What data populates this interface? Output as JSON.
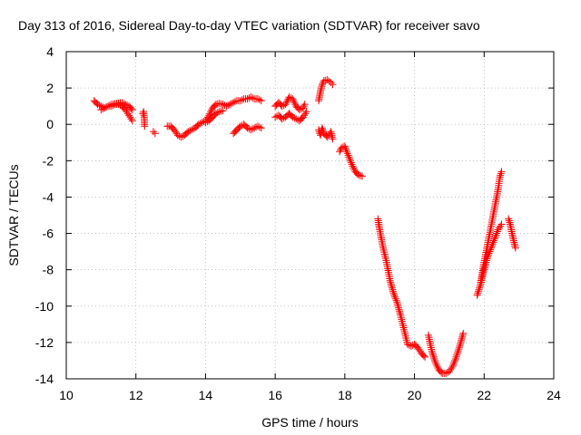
{
  "chart_data": {
    "type": "scatter",
    "title": "Day 313 of 2016, Sidereal Day-to-day VTEC variation (SDTVAR) for receiver savo",
    "xlabel": "GPS time / hours",
    "ylabel": "SDTVAR / TECUs",
    "xlim": [
      10,
      24
    ],
    "ylim": [
      -14,
      4
    ],
    "xticks": [
      10,
      12,
      14,
      16,
      18,
      20,
      22,
      24
    ],
    "yticks": [
      -14,
      -12,
      -10,
      -8,
      -6,
      -4,
      -2,
      0,
      2,
      4
    ],
    "marker": "+",
    "series_color": "#ff0000",
    "series": [
      {
        "name": "SDTVAR",
        "segments": [
          [
            [
              10.8,
              1.3
            ],
            [
              10.9,
              1.1
            ],
            [
              11.0,
              1.0
            ],
            [
              11.1,
              0.9
            ],
            [
              11.2,
              1.0
            ],
            [
              11.3,
              1.0
            ],
            [
              11.4,
              1.1
            ],
            [
              11.5,
              1.1
            ],
            [
              11.6,
              1.0
            ],
            [
              11.7,
              0.8
            ],
            [
              11.8,
              0.5
            ],
            [
              11.9,
              0.2
            ]
          ],
          [
            [
              11.0,
              0.8
            ],
            [
              11.15,
              0.95
            ],
            [
              11.3,
              1.1
            ],
            [
              11.45,
              1.15
            ],
            [
              11.6,
              1.2
            ],
            [
              11.7,
              1.1
            ],
            [
              11.8,
              1.0
            ],
            [
              11.9,
              0.8
            ]
          ],
          [
            [
              12.2,
              0.6
            ],
            [
              12.22,
              0.7
            ],
            [
              12.24,
              0.4
            ],
            [
              12.25,
              -0.1
            ]
          ],
          [
            [
              12.5,
              -0.4
            ],
            [
              12.55,
              -0.5
            ]
          ],
          [
            [
              12.9,
              -0.1
            ],
            [
              13.0,
              -0.1
            ],
            [
              13.1,
              -0.3
            ],
            [
              13.2,
              -0.6
            ],
            [
              13.3,
              -0.7
            ],
            [
              13.4,
              -0.6
            ],
            [
              13.5,
              -0.4
            ],
            [
              13.6,
              -0.3
            ],
            [
              13.7,
              -0.2
            ],
            [
              13.8,
              0.0
            ],
            [
              13.9,
              0.1
            ],
            [
              14.0,
              0.2
            ],
            [
              14.1,
              0.5
            ],
            [
              14.2,
              0.9
            ],
            [
              14.3,
              1.1
            ],
            [
              14.4,
              1.15
            ],
            [
              14.5,
              1.1
            ],
            [
              14.6,
              1.0
            ],
            [
              14.7,
              1.1
            ],
            [
              14.8,
              1.2
            ],
            [
              14.9,
              1.3
            ],
            [
              15.0,
              1.3
            ],
            [
              15.1,
              1.4
            ],
            [
              15.2,
              1.4
            ],
            [
              15.3,
              1.5
            ],
            [
              15.4,
              1.4
            ],
            [
              15.5,
              1.4
            ],
            [
              15.6,
              1.3
            ]
          ],
          [
            [
              14.0,
              0.1
            ],
            [
              14.1,
              0.2
            ],
            [
              14.2,
              0.4
            ],
            [
              14.3,
              0.6
            ],
            [
              14.4,
              0.7
            ],
            [
              14.5,
              0.75
            ]
          ],
          [
            [
              14.8,
              -0.5
            ],
            [
              14.9,
              -0.3
            ],
            [
              15.0,
              -0.1
            ],
            [
              15.1,
              0.0
            ],
            [
              15.2,
              -0.2
            ],
            [
              15.3,
              -0.3
            ],
            [
              15.4,
              -0.2
            ],
            [
              15.5,
              -0.1
            ],
            [
              15.6,
              -0.2
            ]
          ],
          [
            [
              16.0,
              1.0
            ],
            [
              16.1,
              1.2
            ],
            [
              16.2,
              1.0
            ],
            [
              16.3,
              1.1
            ],
            [
              16.4,
              1.5
            ],
            [
              16.5,
              1.4
            ],
            [
              16.6,
              1.0
            ],
            [
              16.7,
              0.8
            ],
            [
              16.8,
              0.9
            ],
            [
              16.85,
              1.1
            ]
          ],
          [
            [
              16.0,
              0.4
            ],
            [
              16.1,
              0.5
            ],
            [
              16.2,
              0.3
            ],
            [
              16.3,
              0.4
            ],
            [
              16.4,
              0.6
            ],
            [
              16.5,
              0.4
            ],
            [
              16.6,
              0.3
            ],
            [
              16.7,
              0.2
            ],
            [
              16.8,
              0.4
            ],
            [
              16.9,
              0.7
            ]
          ],
          [
            [
              17.25,
              1.3
            ],
            [
              17.3,
              1.8
            ],
            [
              17.35,
              2.2
            ],
            [
              17.4,
              2.4
            ],
            [
              17.5,
              2.45
            ],
            [
              17.6,
              2.3
            ],
            [
              17.65,
              2.2
            ]
          ],
          [
            [
              17.25,
              -0.3
            ],
            [
              17.3,
              -0.6
            ],
            [
              17.35,
              -0.2
            ],
            [
              17.4,
              -0.5
            ],
            [
              17.5,
              -0.7
            ],
            [
              17.6,
              -0.4
            ],
            [
              17.65,
              -0.8
            ]
          ],
          [
            [
              17.85,
              -1.5
            ],
            [
              17.9,
              -1.3
            ],
            [
              18.0,
              -1.2
            ],
            [
              18.05,
              -1.5
            ],
            [
              18.1,
              -1.7
            ],
            [
              18.2,
              -2.2
            ],
            [
              18.3,
              -2.6
            ],
            [
              18.4,
              -2.8
            ],
            [
              18.5,
              -2.85
            ]
          ],
          [
            [
              18.95,
              -5.2
            ],
            [
              19.0,
              -5.8
            ],
            [
              19.1,
              -6.8
            ],
            [
              19.2,
              -7.6
            ],
            [
              19.3,
              -8.6
            ],
            [
              19.4,
              -9.3
            ],
            [
              19.5,
              -9.8
            ],
            [
              19.6,
              -10.5
            ],
            [
              19.7,
              -11.3
            ],
            [
              19.8,
              -12.1
            ],
            [
              19.9,
              -12.2
            ],
            [
              20.0,
              -12.1
            ],
            [
              20.1,
              -12.3
            ],
            [
              20.2,
              -12.6
            ],
            [
              20.3,
              -12.8
            ]
          ],
          [
            [
              20.4,
              -11.6
            ],
            [
              20.5,
              -12.5
            ],
            [
              20.6,
              -13.1
            ],
            [
              20.7,
              -13.5
            ],
            [
              20.8,
              -13.7
            ],
            [
              20.9,
              -13.7
            ],
            [
              21.0,
              -13.6
            ],
            [
              21.1,
              -13.3
            ],
            [
              21.2,
              -12.8
            ],
            [
              21.3,
              -12.2
            ],
            [
              21.4,
              -11.5
            ]
          ],
          [
            [
              21.8,
              -9.4
            ],
            [
              21.9,
              -8.8
            ],
            [
              22.0,
              -8.0
            ],
            [
              22.1,
              -7.3
            ],
            [
              22.2,
              -6.8
            ],
            [
              22.3,
              -6.3
            ],
            [
              22.4,
              -5.8
            ],
            [
              22.5,
              -5.5
            ]
          ],
          [
            [
              21.9,
              -8.7
            ],
            [
              22.0,
              -7.6
            ],
            [
              22.1,
              -6.6
            ],
            [
              22.2,
              -5.6
            ],
            [
              22.3,
              -4.6
            ],
            [
              22.4,
              -3.6
            ],
            [
              22.45,
              -2.9
            ],
            [
              22.5,
              -2.6
            ]
          ],
          [
            [
              22.7,
              -5.2
            ],
            [
              22.75,
              -5.5
            ],
            [
              22.8,
              -6.0
            ],
            [
              22.85,
              -6.4
            ],
            [
              22.9,
              -6.8
            ]
          ]
        ]
      }
    ]
  }
}
